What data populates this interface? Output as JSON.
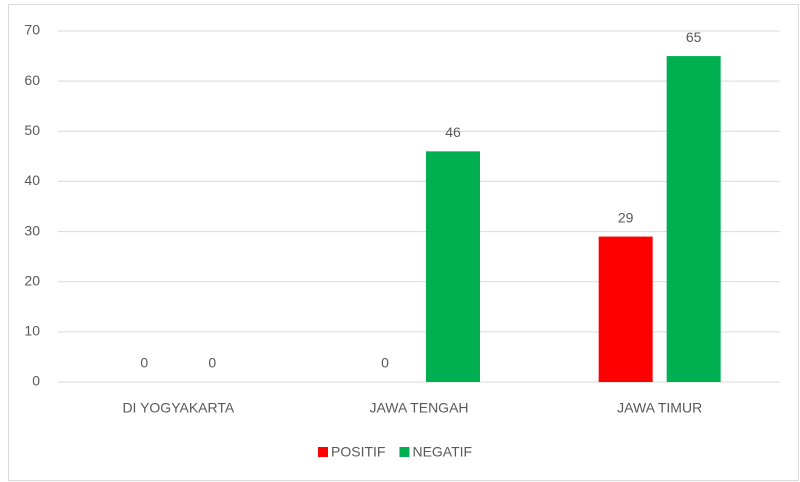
{
  "chart_data": {
    "type": "bar",
    "categories": [
      "DI YOGYAKARTA",
      "JAWA TENGAH",
      "JAWA TIMUR"
    ],
    "series": [
      {
        "name": "POSITIF",
        "color": "#ff0000",
        "values": [
          0,
          0,
          29
        ]
      },
      {
        "name": "NEGATIF",
        "color": "#00b050",
        "values": [
          0,
          46,
          65
        ]
      }
    ],
    "ylim": [
      0,
      70
    ],
    "yticks": [
      0,
      10,
      20,
      30,
      40,
      50,
      60,
      70
    ],
    "grid": true,
    "legend": "bottom"
  }
}
